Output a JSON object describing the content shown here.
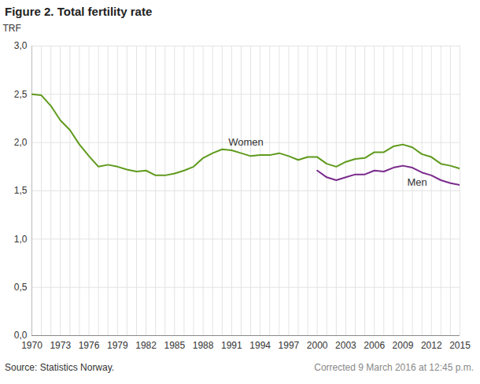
{
  "chart_data": {
    "type": "line",
    "title": "Figure 2. Total fertility rate",
    "y_label": "TRF",
    "source": "Source: Statistics Norway.",
    "note": "Corrected 9 March 2016 at 12:45 p.m.",
    "x": [
      1970,
      1971,
      1972,
      1973,
      1974,
      1975,
      1976,
      1977,
      1978,
      1979,
      1980,
      1981,
      1982,
      1983,
      1984,
      1985,
      1986,
      1987,
      1988,
      1989,
      1990,
      1991,
      1992,
      1993,
      1994,
      1995,
      1996,
      1997,
      1998,
      1999,
      2000,
      2001,
      2002,
      2003,
      2004,
      2005,
      2006,
      2007,
      2008,
      2009,
      2010,
      2011,
      2012,
      2013,
      2014,
      2015
    ],
    "series": [
      {
        "name": "Women",
        "color": "#5f9a1c",
        "label_position": [
          1992.5,
          2.0
        ],
        "values": [
          2.5,
          2.49,
          2.38,
          2.23,
          2.13,
          1.98,
          1.86,
          1.75,
          1.77,
          1.75,
          1.72,
          1.7,
          1.71,
          1.66,
          1.66,
          1.68,
          1.71,
          1.75,
          1.84,
          1.89,
          1.93,
          1.92,
          1.89,
          1.86,
          1.87,
          1.87,
          1.89,
          1.86,
          1.82,
          1.85,
          1.85,
          1.78,
          1.75,
          1.8,
          1.83,
          1.84,
          1.9,
          1.9,
          1.96,
          1.98,
          1.95,
          1.88,
          1.85,
          1.78,
          1.76,
          1.73
        ]
      },
      {
        "name": "Men",
        "color": "#7a2a8c",
        "label_position": [
          2010.5,
          1.59
        ],
        "values": [
          null,
          null,
          null,
          null,
          null,
          null,
          null,
          null,
          null,
          null,
          null,
          null,
          null,
          null,
          null,
          null,
          null,
          null,
          null,
          null,
          null,
          null,
          null,
          null,
          null,
          null,
          null,
          null,
          null,
          null,
          1.71,
          1.64,
          1.61,
          1.64,
          1.67,
          1.67,
          1.71,
          1.7,
          1.74,
          1.76,
          1.74,
          1.69,
          1.66,
          1.61,
          1.58,
          1.56
        ]
      }
    ],
    "xlim": [
      1970,
      2015
    ],
    "xticks": [
      1970,
      1973,
      1976,
      1979,
      1982,
      1985,
      1988,
      1991,
      1994,
      1997,
      2000,
      2003,
      2006,
      2009,
      2012,
      2015
    ],
    "ylim": [
      0,
      3.0
    ],
    "yticks": [
      {
        "value": 0,
        "label": "0,0"
      },
      {
        "value": 0.5,
        "label": "0,5"
      },
      {
        "value": 1.0,
        "label": "1,0"
      },
      {
        "value": 1.5,
        "label": "1,5"
      },
      {
        "value": 2.0,
        "label": "2,0"
      },
      {
        "value": 2.5,
        "label": "2,5"
      },
      {
        "value": 3.0,
        "label": "3,0"
      }
    ],
    "grid": true
  }
}
